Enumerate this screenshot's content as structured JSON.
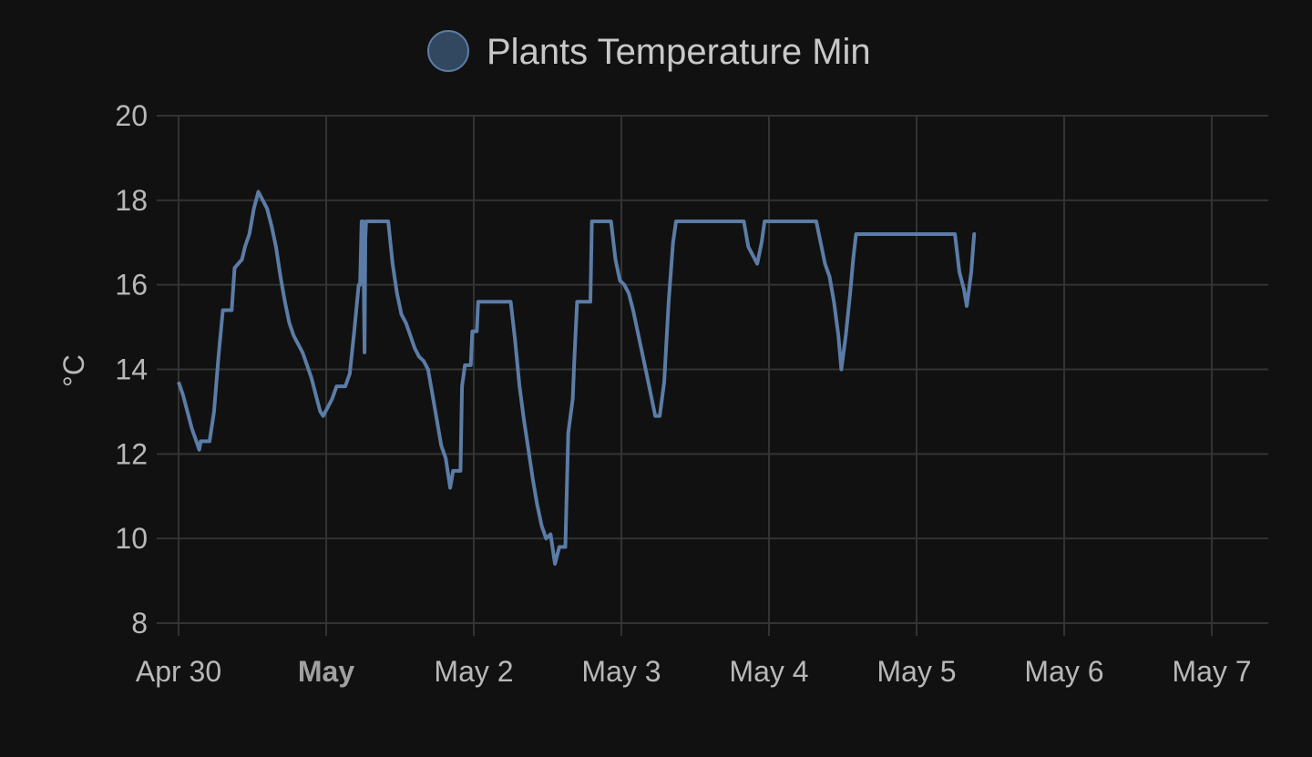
{
  "chart_data": {
    "type": "line",
    "legend": {
      "label": "Plants Temperature Min",
      "position": "top-center"
    },
    "ylabel": "°C",
    "ylim": [
      8,
      20
    ],
    "y_ticks": [
      "8",
      "10",
      "12",
      "14",
      "16",
      "18",
      "20"
    ],
    "x_ticks": [
      {
        "label": "Apr 30",
        "bold": false,
        "day": 0
      },
      {
        "label": "May",
        "bold": true,
        "day": 1
      },
      {
        "label": "May 2",
        "bold": false,
        "day": 2
      },
      {
        "label": "May 3",
        "bold": false,
        "day": 3
      },
      {
        "label": "May 4",
        "bold": false,
        "day": 4
      },
      {
        "label": "May 5",
        "bold": false,
        "day": 5
      },
      {
        "label": "May 6",
        "bold": false,
        "day": 6
      },
      {
        "label": "May 7",
        "bold": false,
        "day": 7
      }
    ],
    "xlim": [
      "2024-04-30 00:00",
      "2024-05-07 09:36"
    ],
    "grid": true,
    "series": [
      {
        "name": "Plants Temperature Min",
        "color": "#5b7ca6",
        "fill_color": "#324760",
        "points": [
          [
            "2024-04-30 00:00",
            13.7
          ],
          [
            "2024-04-30 00:43",
            13.4
          ],
          [
            "2024-04-30 01:26",
            13.0
          ],
          [
            "2024-04-30 02:10",
            12.6
          ],
          [
            "2024-04-30 02:53",
            12.3
          ],
          [
            "2024-04-30 03:22",
            12.1
          ],
          [
            "2024-04-30 03:36",
            12.3
          ],
          [
            "2024-04-30 05:02",
            12.3
          ],
          [
            "2024-04-30 05:46",
            13.0
          ],
          [
            "2024-04-30 06:29",
            14.3
          ],
          [
            "2024-04-30 07:12",
            15.4
          ],
          [
            "2024-04-30 08:38",
            15.4
          ],
          [
            "2024-04-30 09:07",
            16.4
          ],
          [
            "2024-04-30 10:19",
            16.6
          ],
          [
            "2024-04-30 10:48",
            16.9
          ],
          [
            "2024-04-30 11:31",
            17.2
          ],
          [
            "2024-04-30 12:14",
            17.8
          ],
          [
            "2024-04-30 12:58",
            18.2
          ],
          [
            "2024-04-30 13:41",
            18.0
          ],
          [
            "2024-04-30 14:24",
            17.8
          ],
          [
            "2024-04-30 15:07",
            17.4
          ],
          [
            "2024-04-30 15:50",
            16.9
          ],
          [
            "2024-04-30 16:34",
            16.2
          ],
          [
            "2024-04-30 17:17",
            15.6
          ],
          [
            "2024-04-30 18:00",
            15.1
          ],
          [
            "2024-04-30 18:43",
            14.8
          ],
          [
            "2024-04-30 19:26",
            14.6
          ],
          [
            "2024-04-30 20:10",
            14.4
          ],
          [
            "2024-04-30 20:53",
            14.1
          ],
          [
            "2024-04-30 21:36",
            13.8
          ],
          [
            "2024-04-30 22:19",
            13.4
          ],
          [
            "2024-04-30 23:02",
            13.0
          ],
          [
            "2024-04-30 23:31",
            12.9
          ],
          [
            "2024-05-01 00:14",
            13.1
          ],
          [
            "2024-05-01 00:58",
            13.3
          ],
          [
            "2024-05-01 01:41",
            13.6
          ],
          [
            "2024-05-01 02:24",
            13.6
          ],
          [
            "2024-05-01 03:07",
            13.6
          ],
          [
            "2024-05-01 03:50",
            13.9
          ],
          [
            "2024-05-01 04:34",
            14.9
          ],
          [
            "2024-05-01 05:17",
            16.0
          ],
          [
            "2024-05-01 05:31",
            16.0
          ],
          [
            "2024-05-01 05:46",
            17.5
          ],
          [
            "2024-05-01 06:00",
            17.5
          ],
          [
            "2024-05-01 06:14",
            14.4
          ],
          [
            "2024-05-01 06:22",
            17.1
          ],
          [
            "2024-05-01 06:29",
            17.5
          ],
          [
            "2024-05-01 10:05",
            17.5
          ],
          [
            "2024-05-01 10:48",
            16.5
          ],
          [
            "2024-05-01 11:31",
            15.8
          ],
          [
            "2024-05-01 12:14",
            15.3
          ],
          [
            "2024-05-01 12:58",
            15.1
          ],
          [
            "2024-05-01 13:41",
            14.8
          ],
          [
            "2024-05-01 14:24",
            14.5
          ],
          [
            "2024-05-01 15:07",
            14.3
          ],
          [
            "2024-05-01 15:50",
            14.2
          ],
          [
            "2024-05-01 16:34",
            14.0
          ],
          [
            "2024-05-01 17:17",
            13.4
          ],
          [
            "2024-05-01 18:00",
            12.8
          ],
          [
            "2024-05-01 18:43",
            12.2
          ],
          [
            "2024-05-01 19:26",
            11.9
          ],
          [
            "2024-05-01 20:10",
            11.2
          ],
          [
            "2024-05-01 20:38",
            11.6
          ],
          [
            "2024-05-01 21:50",
            11.6
          ],
          [
            "2024-05-01 22:05",
            13.6
          ],
          [
            "2024-05-01 22:34",
            14.1
          ],
          [
            "2024-05-01 23:31",
            14.1
          ],
          [
            "2024-05-01 23:46",
            14.9
          ],
          [
            "2024-05-02 00:29",
            14.9
          ],
          [
            "2024-05-02 00:43",
            15.6
          ],
          [
            "2024-05-02 06:00",
            15.6
          ],
          [
            "2024-05-02 06:43",
            14.7
          ],
          [
            "2024-05-02 07:26",
            13.6
          ],
          [
            "2024-05-02 08:10",
            12.8
          ],
          [
            "2024-05-02 08:53",
            12.1
          ],
          [
            "2024-05-02 09:36",
            11.4
          ],
          [
            "2024-05-02 10:19",
            10.8
          ],
          [
            "2024-05-02 11:02",
            10.3
          ],
          [
            "2024-05-02 11:46",
            10.0
          ],
          [
            "2024-05-02 12:29",
            10.1
          ],
          [
            "2024-05-02 13:12",
            9.4
          ],
          [
            "2024-05-02 13:55",
            9.8
          ],
          [
            "2024-05-02 14:53",
            9.8
          ],
          [
            "2024-05-02 15:22",
            12.5
          ],
          [
            "2024-05-02 16:05",
            13.3
          ],
          [
            "2024-05-02 16:19",
            14.1
          ],
          [
            "2024-05-02 16:48",
            15.6
          ],
          [
            "2024-05-02 18:58",
            15.6
          ],
          [
            "2024-05-02 19:12",
            17.5
          ],
          [
            "2024-05-02 22:19",
            17.5
          ],
          [
            "2024-05-02 23:02",
            16.6
          ],
          [
            "2024-05-02 23:46",
            16.1
          ],
          [
            "2024-05-03 00:29",
            16.0
          ],
          [
            "2024-05-03 01:12",
            15.8
          ],
          [
            "2024-05-03 01:55",
            15.4
          ],
          [
            "2024-05-03 02:38",
            14.9
          ],
          [
            "2024-05-03 03:22",
            14.4
          ],
          [
            "2024-05-03 04:05",
            13.9
          ],
          [
            "2024-05-03 04:48",
            13.4
          ],
          [
            "2024-05-03 05:31",
            12.9
          ],
          [
            "2024-05-03 06:14",
            12.9
          ],
          [
            "2024-05-03 06:58",
            13.7
          ],
          [
            "2024-05-03 07:41",
            15.6
          ],
          [
            "2024-05-03 08:24",
            17.0
          ],
          [
            "2024-05-03 08:53",
            17.5
          ],
          [
            "2024-05-03 19:55",
            17.5
          ],
          [
            "2024-05-03 20:38",
            16.9
          ],
          [
            "2024-05-03 21:22",
            16.7
          ],
          [
            "2024-05-03 22:05",
            16.5
          ],
          [
            "2024-05-03 22:48",
            17.0
          ],
          [
            "2024-05-03 23:17",
            17.5
          ],
          [
            "2024-05-04 07:41",
            17.5
          ],
          [
            "2024-05-04 08:24",
            17.0
          ],
          [
            "2024-05-04 09:07",
            16.5
          ],
          [
            "2024-05-04 09:50",
            16.2
          ],
          [
            "2024-05-04 10:34",
            15.6
          ],
          [
            "2024-05-04 11:17",
            14.8
          ],
          [
            "2024-05-04 11:46",
            14.0
          ],
          [
            "2024-05-04 12:29",
            14.8
          ],
          [
            "2024-05-04 13:12",
            15.8
          ],
          [
            "2024-05-04 13:41",
            16.6
          ],
          [
            "2024-05-04 14:10",
            17.2
          ],
          [
            "2024-05-05 06:14",
            17.2
          ],
          [
            "2024-05-05 06:58",
            16.3
          ],
          [
            "2024-05-05 07:41",
            15.9
          ],
          [
            "2024-05-05 08:10",
            15.5
          ],
          [
            "2024-05-05 08:53",
            16.3
          ],
          [
            "2024-05-05 09:22",
            17.2
          ],
          [
            "2024-05-05 09:36",
            17.2
          ]
        ]
      }
    ]
  }
}
